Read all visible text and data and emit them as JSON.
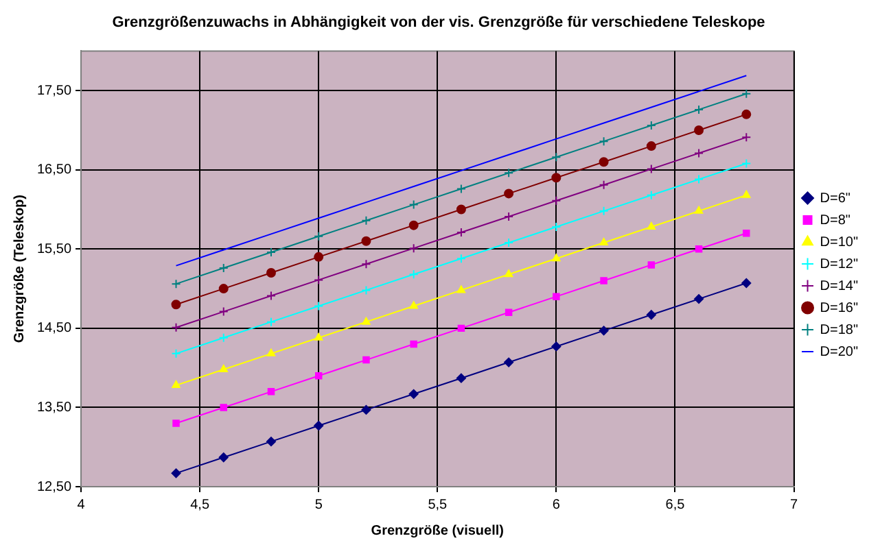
{
  "chart_data": {
    "type": "line",
    "title": "Grenzgrößenzuwachs in Abhängigkeit von der vis. Grenzgröße für verschiedene Teleskope",
    "xlabel": "Grenzgröße (visuell)",
    "ylabel": "Grenzgröße (Teleskop)",
    "x": [
      4.4,
      4.6,
      4.8,
      5.0,
      5.2,
      5.4,
      5.6,
      5.8,
      6.0,
      6.2,
      6.4,
      6.6,
      6.8
    ],
    "series": [
      {
        "name": "D=6\"",
        "color": "#000080",
        "marker": "diamond",
        "values": [
          12.67,
          12.87,
          13.07,
          13.27,
          13.47,
          13.67,
          13.87,
          14.07,
          14.27,
          14.47,
          14.67,
          14.87,
          15.07
        ]
      },
      {
        "name": "D=8\"",
        "color": "#ff00ff",
        "marker": "square",
        "values": [
          13.3,
          13.5,
          13.7,
          13.9,
          14.1,
          14.3,
          14.5,
          14.7,
          14.9,
          15.1,
          15.3,
          15.5,
          15.7
        ]
      },
      {
        "name": "D=10\"",
        "color": "#ffff00",
        "marker": "triangle",
        "values": [
          13.78,
          13.98,
          14.18,
          14.38,
          14.58,
          14.78,
          14.98,
          15.18,
          15.38,
          15.58,
          15.78,
          15.98,
          16.18
        ]
      },
      {
        "name": "D=12\"",
        "color": "#00ffff",
        "marker": "cross",
        "values": [
          14.18,
          14.38,
          14.58,
          14.78,
          14.98,
          15.18,
          15.38,
          15.58,
          15.78,
          15.98,
          16.18,
          16.38,
          16.58
        ]
      },
      {
        "name": "D=14\"",
        "color": "#800080",
        "marker": "cross",
        "values": [
          14.51,
          14.71,
          14.91,
          15.11,
          15.31,
          15.51,
          15.71,
          15.91,
          16.11,
          16.31,
          16.51,
          16.71,
          16.91
        ]
      },
      {
        "name": "D=16\"",
        "color": "#800000",
        "marker": "circle",
        "values": [
          14.8,
          15.0,
          15.2,
          15.4,
          15.6,
          15.8,
          16.0,
          16.2,
          16.4,
          16.6,
          16.8,
          17.0,
          17.2
        ]
      },
      {
        "name": "D=18\"",
        "color": "#008080",
        "marker": "cross",
        "values": [
          15.06,
          15.26,
          15.46,
          15.66,
          15.86,
          16.06,
          16.26,
          16.46,
          16.66,
          16.86,
          17.06,
          17.26,
          17.46
        ]
      },
      {
        "name": "D=20\"",
        "color": "#0000ff",
        "marker": "none",
        "values": [
          15.29,
          15.49,
          15.69,
          15.89,
          16.09,
          16.29,
          16.49,
          16.69,
          16.89,
          17.09,
          17.29,
          17.49,
          17.69
        ]
      }
    ],
    "xlim": [
      4,
      7
    ],
    "xticks": [
      4,
      {
        "value": 4.5,
        "label": "4,5"
      },
      5,
      {
        "value": 5.5,
        "label": "5,5"
      },
      6,
      {
        "value": 6.5,
        "label": "6,5"
      },
      7
    ],
    "ylim": [
      12.5,
      18
    ],
    "yticks": [
      {
        "value": 12.5,
        "label": "12,50"
      },
      {
        "value": 13.5,
        "label": "13,50"
      },
      {
        "value": 14.5,
        "label": "14,50"
      },
      {
        "value": 15.5,
        "label": "15,50"
      },
      {
        "value": 16.5,
        "label": "16,50"
      },
      {
        "value": 17.5,
        "label": "17,50"
      }
    ],
    "grid": true,
    "legend": "right",
    "line_style": "solid"
  }
}
